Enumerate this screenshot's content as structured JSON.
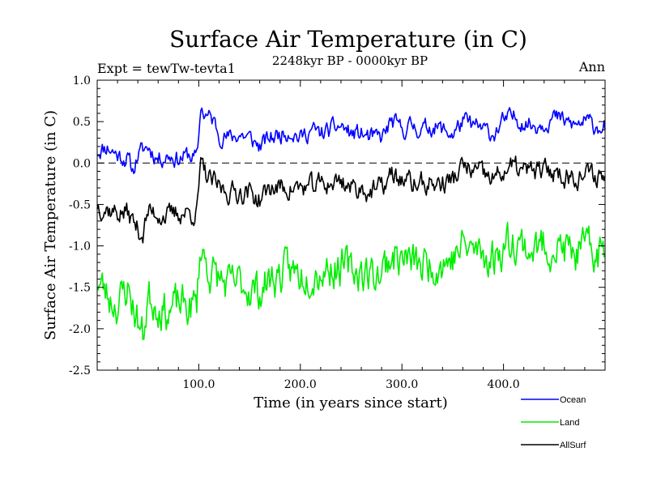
{
  "chart_data": {
    "type": "line",
    "title": "Surface Air Temperature (in C)",
    "subtitle": "2248kyr BP - 0000kyr BP",
    "left_annotation": "Expt = tewTw-tevta1",
    "right_annotation": "Ann",
    "xlabel": "Time (in years since start)",
    "ylabel": "Surface Air Temperature (in C)",
    "xlim": [
      0,
      500
    ],
    "ylim": [
      -2.5,
      1.0
    ],
    "x_ticks": [
      100,
      200,
      300,
      400
    ],
    "x_tick_labels": [
      "100.0",
      "200.0",
      "300.0",
      "400.0"
    ],
    "y_ticks": [
      1.0,
      0.5,
      0.0,
      -0.5,
      -1.0,
      -1.5,
      -2.0,
      -2.5
    ],
    "y_tick_labels": [
      "1.0",
      "0.5",
      "0.0",
      "-0.5",
      "-1.0",
      "-1.5",
      "-2.0",
      "-2.5"
    ],
    "reference_line": 0.0,
    "legend_position": "bottom-right, below plot",
    "series": [
      {
        "name": "Ocean",
        "color": "#0000ff",
        "anchors": [
          [
            0,
            0.15
          ],
          [
            10,
            0.2
          ],
          [
            20,
            0.1
          ],
          [
            30,
            0.05
          ],
          [
            35,
            -0.1
          ],
          [
            40,
            0.1
          ],
          [
            50,
            0.2
          ],
          [
            60,
            0.05
          ],
          [
            70,
            0.1
          ],
          [
            80,
            0.05
          ],
          [
            90,
            0.1
          ],
          [
            98,
            0.05
          ],
          [
            100,
            0.3
          ],
          [
            102,
            0.7
          ],
          [
            105,
            0.6
          ],
          [
            110,
            0.55
          ],
          [
            115,
            0.5
          ],
          [
            120,
            0.35
          ],
          [
            130,
            0.3
          ],
          [
            140,
            0.35
          ],
          [
            150,
            0.3
          ],
          [
            160,
            0.2
          ],
          [
            170,
            0.3
          ],
          [
            180,
            0.35
          ],
          [
            190,
            0.4
          ],
          [
            200,
            0.3
          ],
          [
            210,
            0.4
          ],
          [
            220,
            0.35
          ],
          [
            230,
            0.4
          ],
          [
            240,
            0.45
          ],
          [
            250,
            0.35
          ],
          [
            260,
            0.35
          ],
          [
            270,
            0.3
          ],
          [
            280,
            0.3
          ],
          [
            290,
            0.5
          ],
          [
            300,
            0.4
          ],
          [
            310,
            0.45
          ],
          [
            320,
            0.4
          ],
          [
            330,
            0.45
          ],
          [
            340,
            0.4
          ],
          [
            350,
            0.35
          ],
          [
            360,
            0.5
          ],
          [
            370,
            0.45
          ],
          [
            380,
            0.4
          ],
          [
            390,
            0.35
          ],
          [
            400,
            0.5
          ],
          [
            410,
            0.55
          ],
          [
            420,
            0.5
          ],
          [
            430,
            0.45
          ],
          [
            440,
            0.5
          ],
          [
            450,
            0.55
          ],
          [
            460,
            0.5
          ],
          [
            470,
            0.45
          ],
          [
            480,
            0.5
          ],
          [
            490,
            0.45
          ],
          [
            500,
            0.45
          ]
        ],
        "noise": 0.09,
        "seed": 11
      },
      {
        "name": "Land",
        "color": "#00ee00",
        "anchors": [
          [
            0,
            -1.4
          ],
          [
            10,
            -1.6
          ],
          [
            20,
            -1.7
          ],
          [
            30,
            -1.5
          ],
          [
            40,
            -1.9
          ],
          [
            45,
            -2.1
          ],
          [
            50,
            -1.6
          ],
          [
            60,
            -1.7
          ],
          [
            70,
            -1.8
          ],
          [
            80,
            -1.7
          ],
          [
            90,
            -1.75
          ],
          [
            98,
            -1.7
          ],
          [
            100,
            -1.3
          ],
          [
            102,
            -1.0
          ],
          [
            110,
            -1.3
          ],
          [
            120,
            -1.4
          ],
          [
            130,
            -1.5
          ],
          [
            140,
            -1.45
          ],
          [
            150,
            -1.5
          ],
          [
            160,
            -1.55
          ],
          [
            170,
            -1.4
          ],
          [
            180,
            -1.35
          ],
          [
            190,
            -1.3
          ],
          [
            200,
            -1.35
          ],
          [
            210,
            -1.3
          ],
          [
            220,
            -1.3
          ],
          [
            230,
            -1.25
          ],
          [
            240,
            -1.25
          ],
          [
            250,
            -1.3
          ],
          [
            260,
            -1.3
          ],
          [
            270,
            -1.35
          ],
          [
            280,
            -1.3
          ],
          [
            290,
            -1.1
          ],
          [
            300,
            -1.15
          ],
          [
            310,
            -1.2
          ],
          [
            320,
            -1.25
          ],
          [
            330,
            -1.2
          ],
          [
            340,
            -1.2
          ],
          [
            350,
            -1.15
          ],
          [
            360,
            -1.0
          ],
          [
            370,
            -1.05
          ],
          [
            380,
            -1.1
          ],
          [
            390,
            -1.15
          ],
          [
            400,
            -1.0
          ],
          [
            410,
            -0.9
          ],
          [
            420,
            -1.0
          ],
          [
            430,
            -1.05
          ],
          [
            440,
            -1.0
          ],
          [
            450,
            -1.0
          ],
          [
            460,
            -1.05
          ],
          [
            470,
            -1.1
          ],
          [
            480,
            -1.05
          ],
          [
            490,
            -1.1
          ],
          [
            500,
            -1.05
          ]
        ],
        "noise": 0.2,
        "seed": 23
      },
      {
        "name": "AllSurf",
        "color": "#000000",
        "anchors": [
          [
            0,
            -0.5
          ],
          [
            10,
            -0.55
          ],
          [
            20,
            -0.6
          ],
          [
            30,
            -0.6
          ],
          [
            40,
            -0.8
          ],
          [
            45,
            -0.85
          ],
          [
            50,
            -0.6
          ],
          [
            60,
            -0.6
          ],
          [
            70,
            -0.65
          ],
          [
            80,
            -0.6
          ],
          [
            90,
            -0.6
          ],
          [
            98,
            -0.6
          ],
          [
            100,
            -0.3
          ],
          [
            102,
            -0.05
          ],
          [
            110,
            -0.2
          ],
          [
            120,
            -0.3
          ],
          [
            130,
            -0.35
          ],
          [
            140,
            -0.35
          ],
          [
            150,
            -0.35
          ],
          [
            160,
            -0.45
          ],
          [
            170,
            -0.3
          ],
          [
            180,
            -0.3
          ],
          [
            190,
            -0.3
          ],
          [
            200,
            -0.3
          ],
          [
            210,
            -0.3
          ],
          [
            220,
            -0.25
          ],
          [
            230,
            -0.25
          ],
          [
            240,
            -0.2
          ],
          [
            250,
            -0.3
          ],
          [
            260,
            -0.3
          ],
          [
            270,
            -0.35
          ],
          [
            280,
            -0.3
          ],
          [
            290,
            -0.15
          ],
          [
            300,
            -0.2
          ],
          [
            310,
            -0.25
          ],
          [
            320,
            -0.25
          ],
          [
            330,
            -0.25
          ],
          [
            340,
            -0.25
          ],
          [
            350,
            -0.2
          ],
          [
            360,
            -0.05
          ],
          [
            370,
            -0.1
          ],
          [
            380,
            -0.15
          ],
          [
            390,
            -0.2
          ],
          [
            400,
            -0.1
          ],
          [
            410,
            -0.05
          ],
          [
            420,
            -0.1
          ],
          [
            430,
            -0.1
          ],
          [
            440,
            -0.1
          ],
          [
            450,
            -0.1
          ],
          [
            460,
            -0.15
          ],
          [
            470,
            -0.15
          ],
          [
            480,
            -0.15
          ],
          [
            490,
            -0.15
          ],
          [
            500,
            -0.15
          ]
        ],
        "noise": 0.11,
        "seed": 37
      }
    ]
  }
}
